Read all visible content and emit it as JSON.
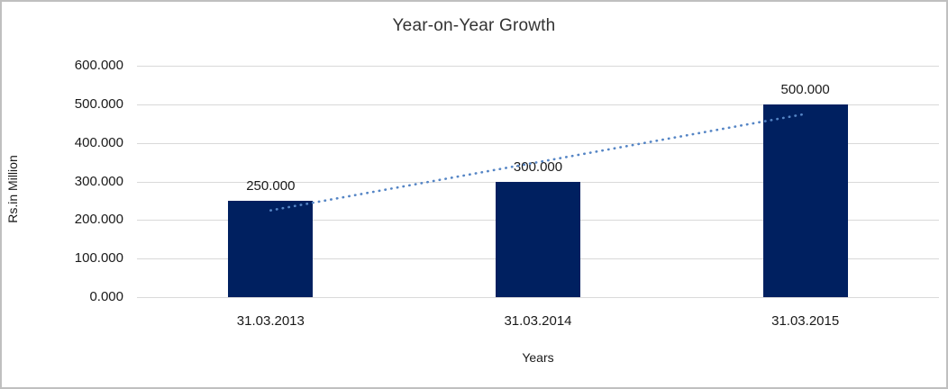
{
  "chart_data": {
    "type": "bar",
    "title": "Year-on-Year Growth",
    "xlabel": "Years",
    "ylabel": "Rs.in Million",
    "categories": [
      "31.03.2013",
      "31.03.2014",
      "31.03.2015"
    ],
    "values": [
      250,
      300,
      500
    ],
    "data_labels": [
      "250.000",
      "300.000",
      "500.000"
    ],
    "ylim": [
      0,
      600
    ],
    "ytick_step": 100,
    "ytick_labels": [
      "600.000",
      "500.000",
      "400.000",
      "300.000",
      "200.000",
      "100.000",
      "0.000"
    ],
    "grid": true,
    "legend": "none",
    "trendline": {
      "type": "linear",
      "style": "dotted",
      "series_values": [
        250,
        300,
        500
      ]
    }
  },
  "colors": {
    "bar": "#002060",
    "trendline": "#5585c5",
    "gridline": "#d9d9d9",
    "frame_border": "#bfbfbf",
    "title_text": "#333333",
    "axis_text": "#1a1a1a"
  }
}
